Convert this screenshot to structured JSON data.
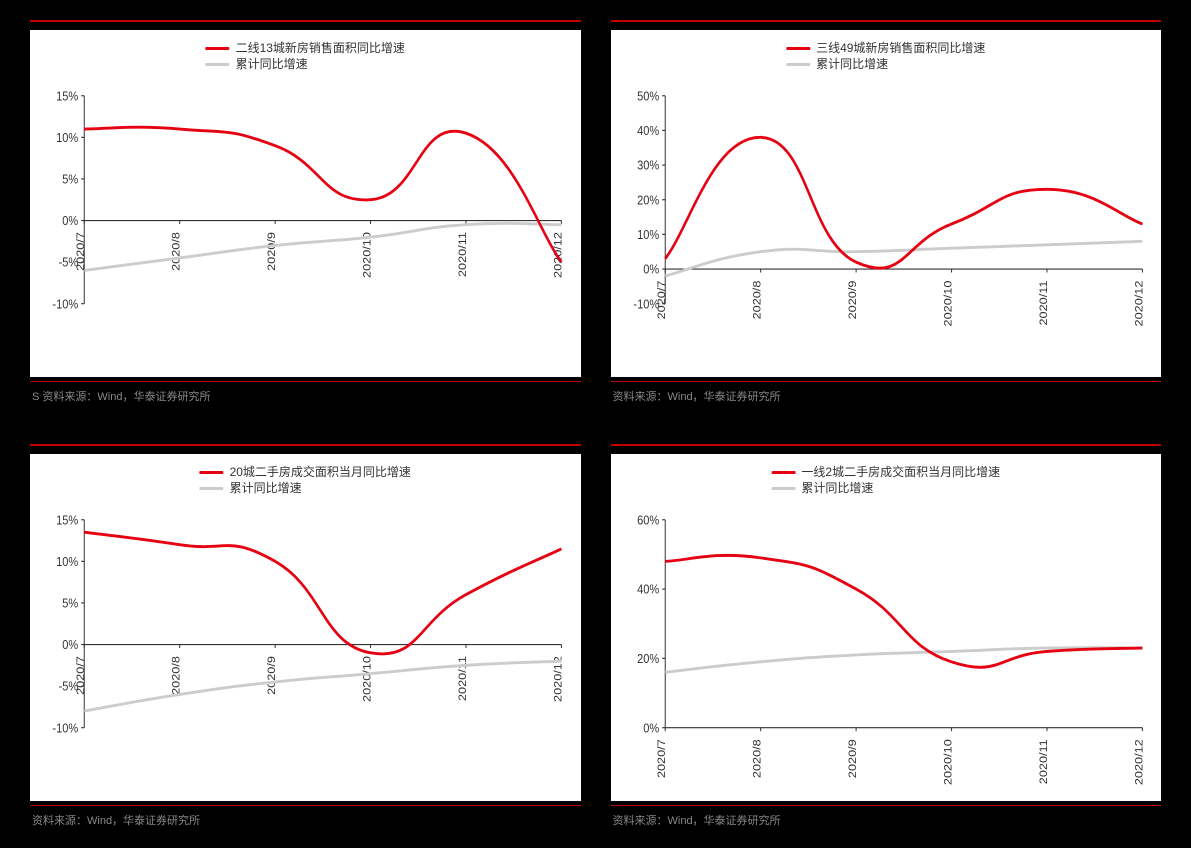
{
  "colors": {
    "bg": "#000000",
    "panel_bg": "#ffffff",
    "accent": "#c00000",
    "series_primary": "#e60012",
    "series_secondary": "#cccccc",
    "text": "#333333",
    "source_text": "#888888",
    "tick": "#cccccc"
  },
  "typography": {
    "legend_fontsize": 12,
    "axis_fontsize": 11,
    "source_fontsize": 11
  },
  "charts": [
    {
      "id": "chart-tl",
      "type": "line",
      "legend": [
        {
          "label": "二线13城新房销售面积同比增速",
          "color": "#e60012"
        },
        {
          "label": "累计同比增速",
          "color": "#cccccc"
        }
      ],
      "x_labels": [
        "2020/7",
        "2020/8",
        "2020/9",
        "2020/10",
        "2020/11",
        "2020/12"
      ],
      "ylim": [
        -10,
        15
      ],
      "ytick_step": 5,
      "y_format": "percent",
      "series": [
        {
          "color": "#e60012",
          "width": 2.5,
          "values": [
            11,
            11,
            9,
            2.5,
            10.5,
            -5
          ]
        },
        {
          "color": "#cccccc",
          "width": 2.5,
          "values": [
            -6,
            -4.5,
            -3,
            -2,
            -0.5,
            -0.5
          ]
        }
      ],
      "source": "S 资料来源：Wind，华泰证券研究所"
    },
    {
      "id": "chart-tr",
      "type": "line",
      "legend": [
        {
          "label": "三线49城新房销售面积同比增速",
          "color": "#e60012"
        },
        {
          "label": "累计同比增速",
          "color": "#cccccc"
        }
      ],
      "x_labels": [
        "2020/7",
        "2020/8",
        "2020/9",
        "2020/10",
        "2020/11",
        "2020/12"
      ],
      "ylim": [
        -10,
        50
      ],
      "ytick_step": 10,
      "y_format": "percent",
      "series": [
        {
          "color": "#e60012",
          "width": 2.5,
          "values": [
            3,
            38,
            2,
            13,
            23,
            13
          ]
        },
        {
          "color": "#cccccc",
          "width": 2.5,
          "values": [
            -2,
            5,
            5,
            6,
            7,
            8
          ]
        }
      ],
      "source": "资料来源：Wind，华泰证券研究所"
    },
    {
      "id": "chart-bl",
      "type": "line",
      "legend": [
        {
          "label": "20城二手房成交面积当月同比增速",
          "color": "#e60012"
        },
        {
          "label": "累计同比增速",
          "color": "#cccccc"
        }
      ],
      "x_labels": [
        "2020/7",
        "2020/8",
        "2020/9",
        "2020/10",
        "2020/11",
        "2020/12"
      ],
      "ylim": [
        -10,
        15
      ],
      "ytick_step": 5,
      "y_format": "percent",
      "series": [
        {
          "color": "#e60012",
          "width": 2.5,
          "values": [
            13.5,
            12,
            10,
            -1,
            6,
            11.5
          ]
        },
        {
          "color": "#cccccc",
          "width": 2.5,
          "values": [
            -8,
            -6,
            -4.5,
            -3.5,
            -2.5,
            -2
          ]
        }
      ],
      "source": "资料来源：Wind，华泰证券研究所"
    },
    {
      "id": "chart-br",
      "type": "line",
      "legend": [
        {
          "label": "一线2城二手房成交面积当月同比增速",
          "color": "#e60012"
        },
        {
          "label": "累计同比增速",
          "color": "#cccccc"
        }
      ],
      "x_labels": [
        "2020/7",
        "2020/8",
        "2020/9",
        "2020/10",
        "2020/11",
        "2020/12"
      ],
      "ylim": [
        0,
        60
      ],
      "ytick_step": 20,
      "y_format": "percent",
      "series": [
        {
          "color": "#e60012",
          "width": 2.5,
          "values": [
            48,
            49,
            40,
            19,
            22,
            23
          ]
        },
        {
          "color": "#cccccc",
          "width": 2.5,
          "values": [
            16,
            19,
            21,
            22,
            23,
            23
          ]
        }
      ],
      "source": "资料来源：Wind，华泰证券研究所"
    }
  ]
}
